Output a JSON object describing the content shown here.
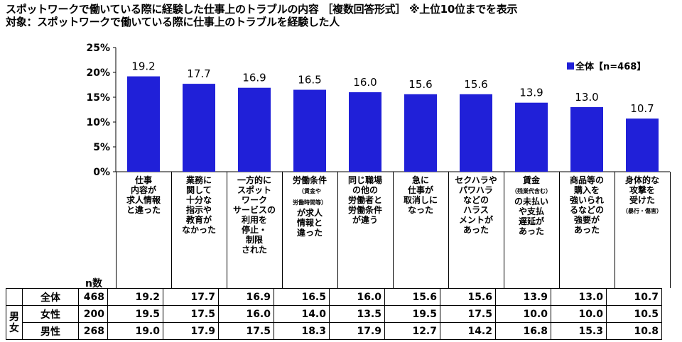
{
  "title_line1": "スポットワークで働いている際に経験した仕事上のトラブルの内容 ［複数回答形式］ ※上位10位までを表示",
  "title_line2": "対象：スポットワークで働いている際に仕事上のトラブルを経験した人",
  "legend_label": "全体【n=468】",
  "n_caption": "n数",
  "colors": {
    "bar": "#2020d8"
  },
  "chart_data": {
    "type": "bar",
    "title": "スポットワークで働いている際に経験した仕事上のトラブルの内容",
    "ylim": [
      0,
      25
    ],
    "yticks": [
      "0%",
      "5%",
      "10%",
      "15%",
      "20%",
      "25%"
    ],
    "grid": false,
    "legend_position": "top-right",
    "categories": [
      "仕事内容が求人情報と違った",
      "業務に関して十分な指示や教育がなかった",
      "一方的にスポットワークサービスの利用を停止・制限された",
      "労働条件（賃金や労働時間等）が求人情報と違った",
      "同じ職場の他の労働者と労働条件が違う",
      "急に仕事が取消しになった",
      "セクハラやパワハラなどのハラスメントがあった",
      "賃金（残業代含む）の未払いや支払遅延があった",
      "商品等の購入を強いられるなどの強要があった",
      "身体的な攻撃を受けた（暴行・傷害）"
    ],
    "series": [
      {
        "name": "全体【n=468】",
        "values": [
          19.2,
          17.7,
          16.9,
          16.5,
          16.0,
          15.6,
          15.6,
          13.9,
          13.0,
          10.7
        ]
      }
    ]
  },
  "category_display": [
    {
      "main": "仕事\n内容が\n求人情報\nと違った"
    },
    {
      "main": "業務に\n関して\n十分な\n指示や\n教育が\nなかった"
    },
    {
      "main": "一方的に\nスポット\nワーク\nサービスの\n利用を\n停止・\n制限\nされた"
    },
    {
      "main": "労働条件",
      "small1": "（賃金や",
      "small2": "労働時間等）",
      "tail": "が求人\n情報と\n違った"
    },
    {
      "main": "同じ職場\nの他の\n労働者と\n労働条件\nが違う"
    },
    {
      "main": "急に\n仕事が\n取消しに\nなった"
    },
    {
      "main": "セクハラや\nパワハラ\nなどの\nハラス\nメントが\nあった"
    },
    {
      "main": "賃金",
      "small1": "（残業代含む）",
      "tail": "の未払い\nや支払\n遅延が\nあった"
    },
    {
      "main": "商品等の\n購入を\n強いられ\nるなどの\n強要が\nあった"
    },
    {
      "main": "身体的な\n攻撃を\n受けた",
      "small1": "（暴行・傷害）"
    }
  ],
  "table": {
    "gender_group_label": "男女",
    "rows": [
      {
        "label": "全体",
        "n": "468",
        "values": [
          "19.2",
          "17.7",
          "16.9",
          "16.5",
          "16.0",
          "15.6",
          "15.6",
          "13.9",
          "13.0",
          "10.7"
        ]
      },
      {
        "label": "女性",
        "n": "200",
        "values": [
          "19.5",
          "17.5",
          "16.0",
          "14.0",
          "13.5",
          "19.5",
          "17.5",
          "10.0",
          "10.0",
          "10.5"
        ]
      },
      {
        "label": "男性",
        "n": "268",
        "values": [
          "19.0",
          "17.9",
          "17.5",
          "18.3",
          "17.9",
          "12.7",
          "14.2",
          "16.8",
          "15.3",
          "10.8"
        ]
      }
    ]
  }
}
